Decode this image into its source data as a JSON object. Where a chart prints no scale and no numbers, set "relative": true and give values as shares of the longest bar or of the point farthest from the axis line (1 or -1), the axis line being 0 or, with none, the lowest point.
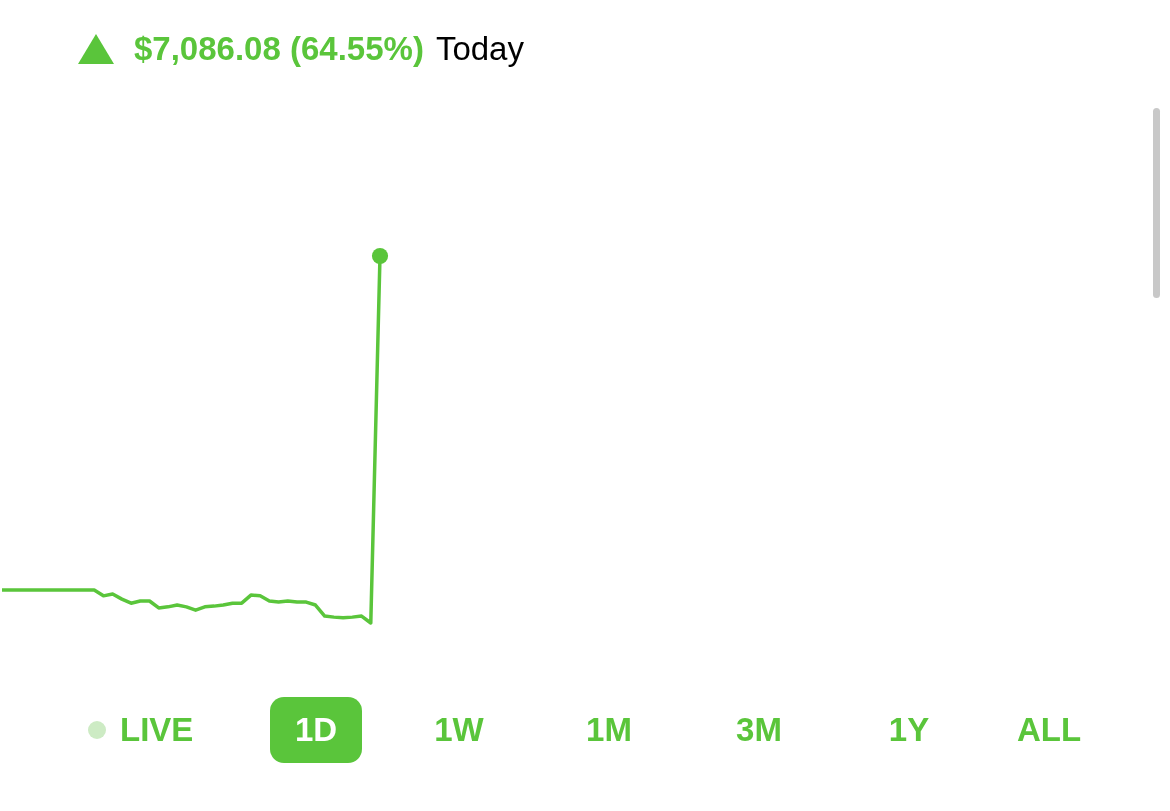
{
  "chart_data": {
    "type": "line",
    "title": "$7,086.08 (64.55%)",
    "subtitle": "Today",
    "relative": true,
    "categories": [
      null,
      null,
      null,
      null,
      null,
      null,
      null,
      null,
      null,
      null,
      null,
      null,
      null,
      null,
      null,
      null,
      null,
      null,
      null,
      null,
      null,
      null,
      null,
      null,
      null,
      null,
      null,
      null,
      null,
      null,
      null,
      null,
      null,
      null,
      null,
      null,
      null,
      null,
      null,
      null,
      null,
      null
    ],
    "series": [
      {
        "type": "line",
        "color": "#5ac53b",
        "values": [
          0.09,
          0.09,
          0.09,
          0.09,
          0.09,
          0.09,
          0.09,
          0.09,
          0.09,
          0.09,
          0.09,
          0.074,
          0.079,
          0.065,
          0.054,
          0.06,
          0.06,
          0.041,
          0.044,
          0.049,
          0.044,
          0.035,
          0.044,
          0.046,
          0.049,
          0.054,
          0.054,
          0.076,
          0.074,
          0.06,
          0.057,
          0.06,
          0.057,
          0.057,
          0.049,
          0.019,
          0.016,
          0.014,
          0.016,
          0.019,
          0,
          1
        ]
      }
    ],
    "annotations": [
      "LIVE",
      "1D",
      "1W",
      "1M",
      "3M",
      "1Y",
      "ALL"
    ]
  }
}
